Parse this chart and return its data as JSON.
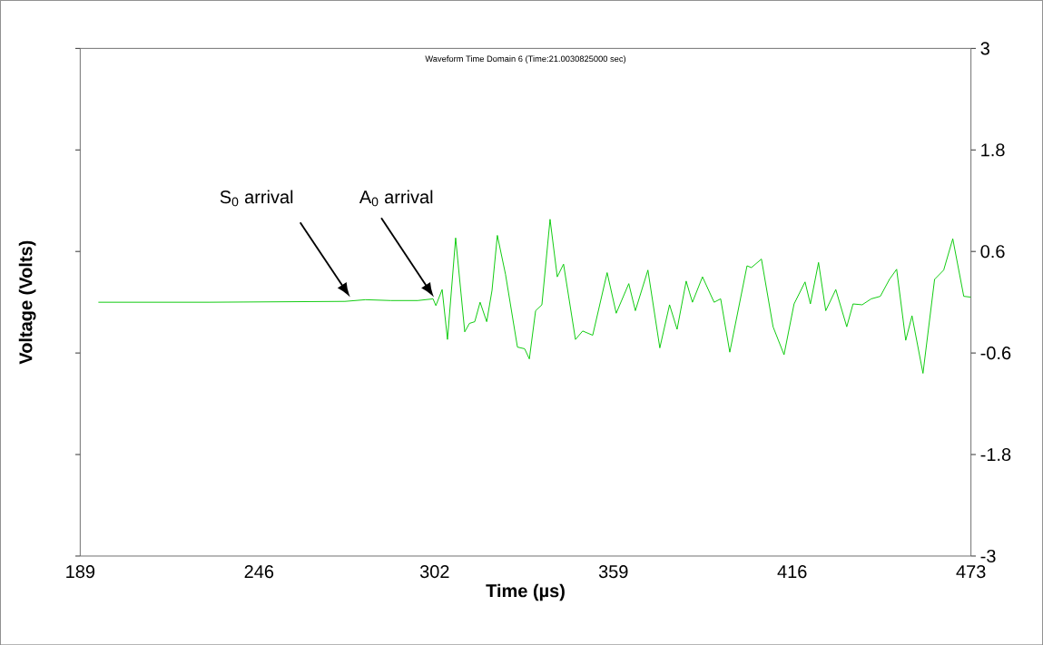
{
  "chart_data": {
    "type": "line",
    "title": "Waveform Time Domain   6 (Time:21.0030825000 sec)",
    "xlabel": "Time (µs)",
    "ylabel": "Voltage (Volts)",
    "x": [
      194.8,
      230,
      273.4,
      280,
      288,
      296.6,
      301.5,
      302.4,
      304.4,
      306.1,
      308.7,
      311.6,
      313.1,
      314.8,
      316.5,
      318.6,
      320.3,
      322.0,
      324.6,
      328.4,
      330.7,
      332.2,
      334.2,
      336.2,
      338.8,
      341.1,
      343.1,
      346.9,
      349.2,
      352.4,
      357.0,
      359.9,
      363.9,
      366.0,
      370.0,
      373.8,
      376.9,
      379.3,
      382.2,
      383.3,
      384.2,
      387.4,
      391.1,
      393.2,
      396.1,
      401.6,
      403.0,
      406.2,
      409.9,
      413.4,
      416.6,
      420.1,
      421.8,
      424.4,
      426.7,
      429.9,
      433.4,
      435.4,
      438.3,
      441.2,
      444.1,
      447.0,
      449.3,
      452.2,
      454.2,
      457.7,
      461.4,
      464.3,
      467.2,
      470.7,
      473.0
    ],
    "series": [
      {
        "color": "#00c800",
        "values": [
          0.0,
          0.0,
          0.01,
          0.03,
          0.02,
          0.02,
          0.04,
          -0.04,
          0.15,
          -0.44,
          0.76,
          -0.35,
          -0.25,
          -0.23,
          0.0,
          -0.23,
          0.14,
          0.79,
          0.33,
          -0.53,
          -0.55,
          -0.67,
          -0.1,
          -0.03,
          0.98,
          0.3,
          0.45,
          -0.44,
          -0.34,
          -0.39,
          0.35,
          -0.13,
          0.22,
          -0.1,
          0.38,
          -0.54,
          -0.03,
          -0.32,
          0.25,
          0.11,
          0.0,
          0.3,
          0.0,
          0.04,
          -0.59,
          0.43,
          0.41,
          0.51,
          -0.29,
          -0.62,
          -0.02,
          0.24,
          -0.02,
          0.47,
          -0.1,
          0.15,
          -0.29,
          -0.02,
          -0.03,
          0.04,
          0.07,
          0.27,
          0.39,
          -0.45,
          -0.16,
          -0.84,
          0.27,
          0.38,
          0.75,
          0.07,
          0.06
        ]
      }
    ],
    "xlim": [
      189,
      473
    ],
    "xticks": [
      189,
      246,
      302,
      359,
      416,
      473
    ],
    "ylim": [
      -3,
      3
    ],
    "yticks": [
      3,
      1.8,
      0.6,
      -0.6,
      -1.8,
      -3
    ],
    "grid": false,
    "marker": "none",
    "line_style": "solid",
    "annotations": [
      "S$_{0}$ arrival",
      "A$_{0}$ arrival"
    ]
  }
}
